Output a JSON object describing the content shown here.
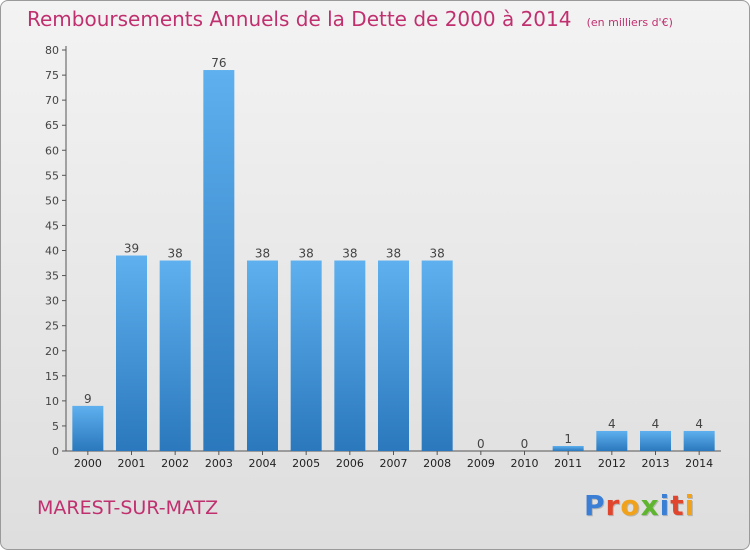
{
  "title": "Remboursements Annuels de la Dette de 2000 à 2014",
  "unit_note": "(en milliers d'€)",
  "commune": "MAREST-SUR-MATZ",
  "brand": {
    "text": "Proxiti",
    "letter_colors": [
      "#3a7fd5",
      "#e0462e",
      "#f0a21c",
      "#5fb52f",
      "#3a7fd5",
      "#e0462e",
      "#f0a21c"
    ]
  },
  "colors": {
    "title": "#c0306f",
    "bar_light": "#5eb0ee",
    "bar_dark": "#2b78bd"
  },
  "chart_data": {
    "type": "bar",
    "categories": [
      "2000",
      "2001",
      "2002",
      "2003",
      "2004",
      "2005",
      "2006",
      "2007",
      "2008",
      "2009",
      "2010",
      "2011",
      "2012",
      "2013",
      "2014"
    ],
    "values": [
      9,
      39,
      38,
      76,
      38,
      38,
      38,
      38,
      38,
      0,
      0,
      1,
      4,
      4,
      4
    ],
    "ylim": [
      0,
      80
    ],
    "yticks": [
      0,
      5,
      10,
      15,
      20,
      25,
      30,
      35,
      40,
      45,
      50,
      55,
      60,
      65,
      70,
      75,
      80
    ],
    "grid": false
  }
}
